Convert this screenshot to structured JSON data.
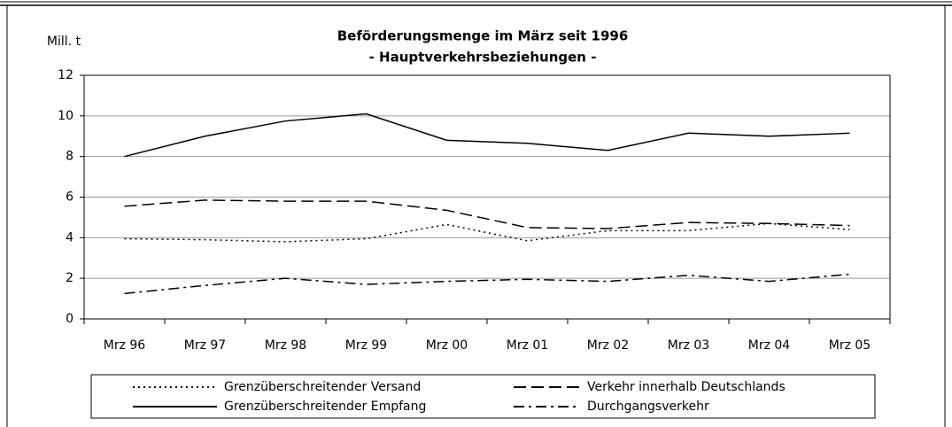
{
  "chart_data": {
    "type": "line",
    "title": "Beförderungsmenge im März seit 1996",
    "subtitle": "- Hauptverkehrsbeziehungen -",
    "y_label": "Mill. t",
    "categories": [
      "Mrz 96",
      "Mrz 97",
      "Mrz 98",
      "Mrz 99",
      "Mrz 00",
      "Mrz 01",
      "Mrz 02",
      "Mrz 03",
      "Mrz 04",
      "Mrz 05"
    ],
    "series": [
      {
        "name": "Grenzüberschreitender Versand",
        "color": "#000000",
        "linestyle": "dotted",
        "values": [
          3.95,
          3.9,
          3.8,
          3.95,
          4.65,
          3.85,
          4.35,
          4.35,
          4.7,
          4.4
        ]
      },
      {
        "name": "Verkehr innerhalb Deutschlands",
        "color": "#000000",
        "linestyle": "dashed",
        "values": [
          5.55,
          5.85,
          5.8,
          5.8,
          5.35,
          4.5,
          4.45,
          4.75,
          4.7,
          4.6
        ]
      },
      {
        "name": "Grenzüberschreitender Empfang",
        "color": "#000000",
        "linestyle": "solid",
        "values": [
          8.0,
          9.0,
          9.75,
          10.1,
          8.8,
          8.65,
          8.3,
          9.15,
          9.0,
          9.15
        ]
      },
      {
        "name": "Durchgangsverkehr",
        "color": "#000000",
        "linestyle": "dashdot",
        "values": [
          1.25,
          1.65,
          2.0,
          1.7,
          1.85,
          1.95,
          1.85,
          2.15,
          1.85,
          2.2
        ]
      }
    ],
    "ylim": [
      0,
      12
    ],
    "yticks": [
      0,
      2,
      4,
      6,
      8,
      10,
      12
    ],
    "grid": true,
    "legend": "bottom"
  }
}
